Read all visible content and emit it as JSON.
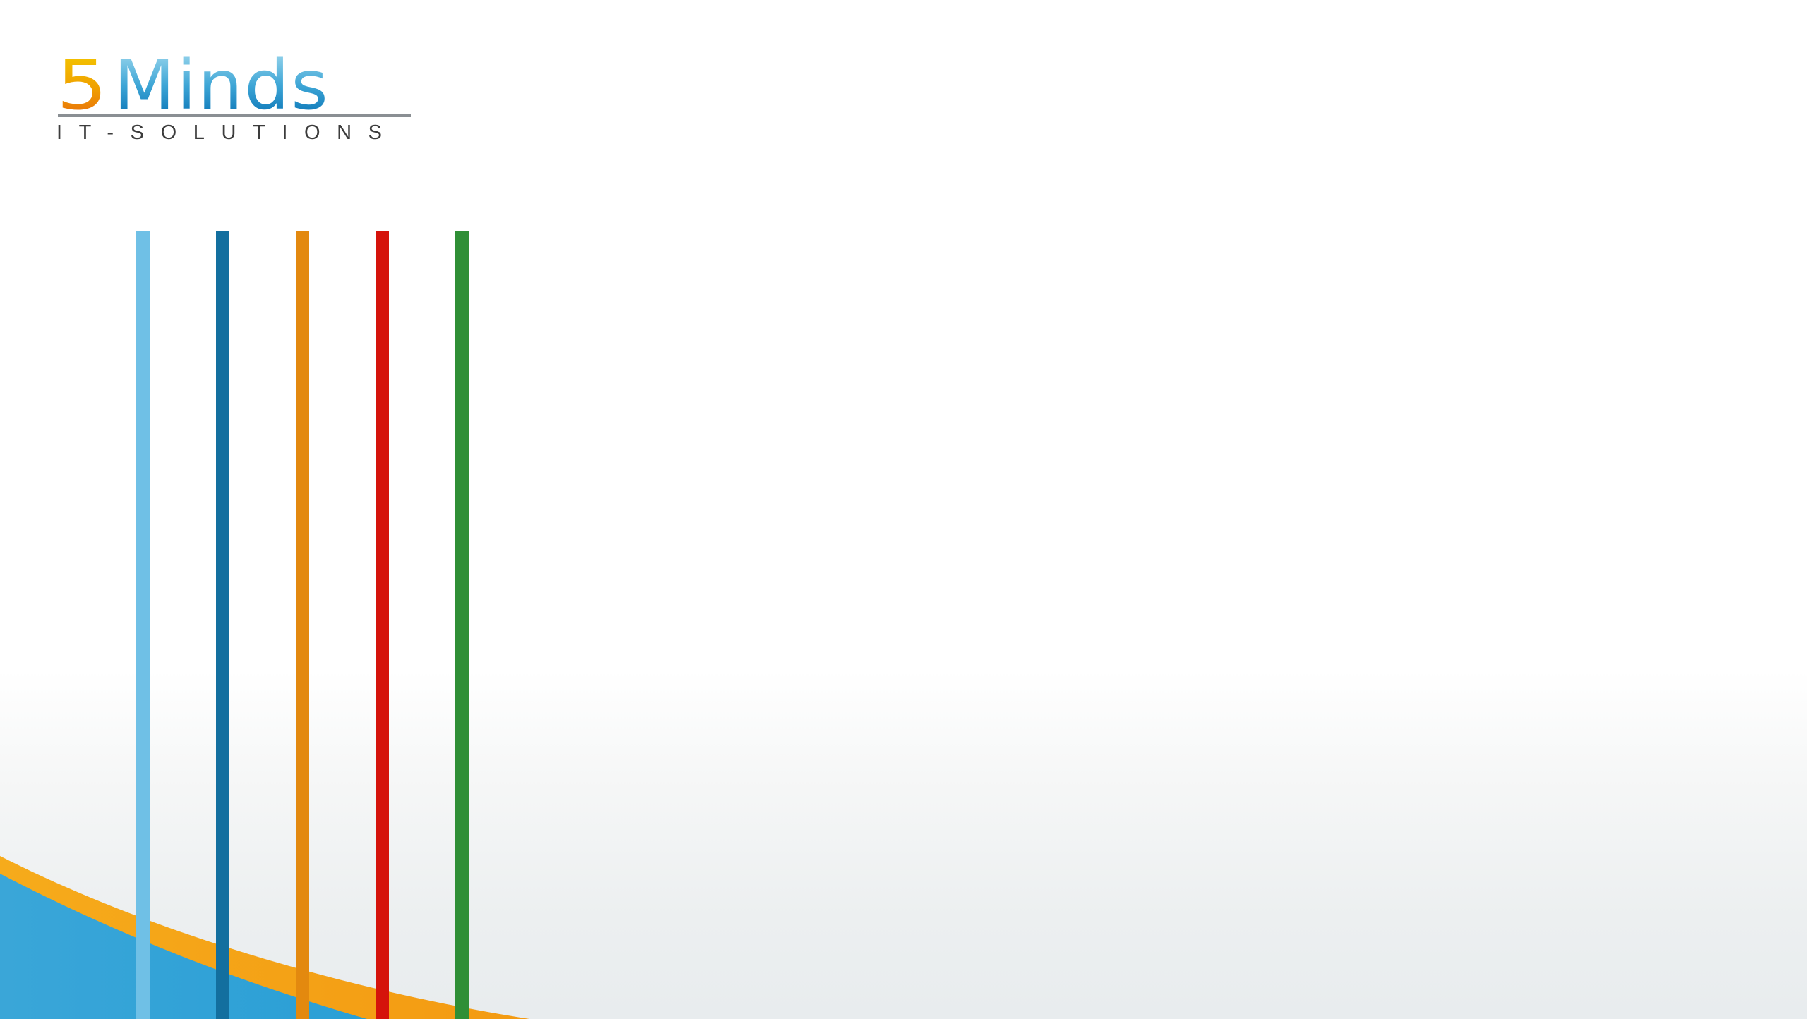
{
  "logo": {
    "five": "5",
    "minds": "Minds",
    "tagline": "IT-SOLUTIONS",
    "colors": {
      "five_top": "#f3c300",
      "five_bottom": "#e8700a",
      "minds_top": "#8fd0ea",
      "minds_bottom": "#0d77b8",
      "rule": "#8a8f93",
      "tagline": "#3c3c3c"
    }
  },
  "bars": [
    {
      "name": "light-blue",
      "color": "#6fc0e6"
    },
    {
      "name": "dark-blue",
      "color": "#136f9f"
    },
    {
      "name": "orange",
      "color": "#e3890f"
    },
    {
      "name": "red",
      "color": "#d5130b"
    },
    {
      "name": "green",
      "color": "#2f8f36"
    }
  ],
  "wave": {
    "orange": "#f39a12",
    "blue": "#2a9fd6"
  }
}
